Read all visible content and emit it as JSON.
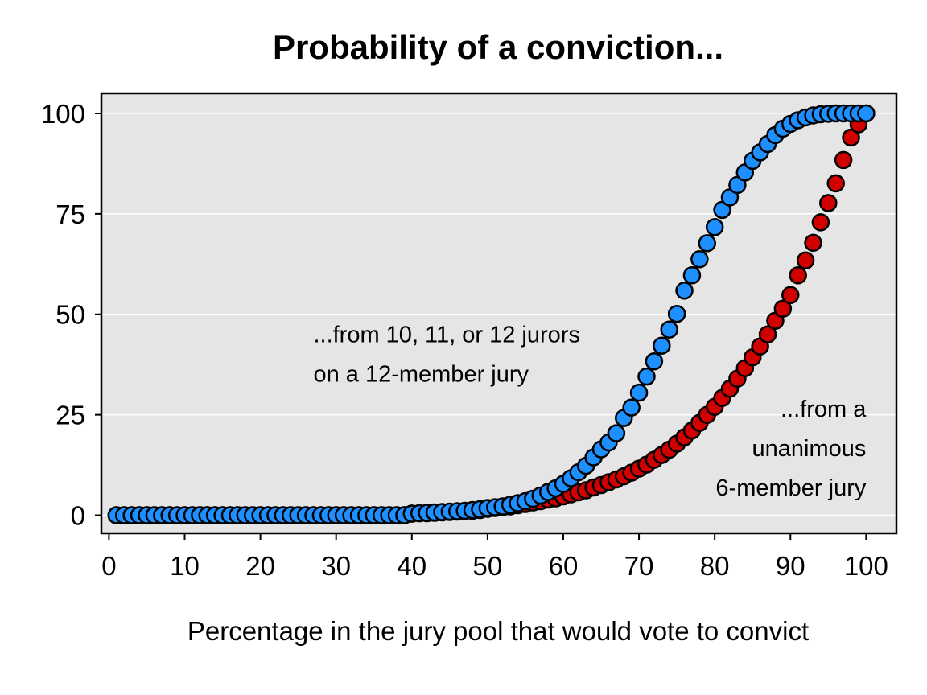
{
  "chart_data": {
    "type": "scatter",
    "title": "Probability of a conviction...",
    "xlabel": "Percentage in the jury pool that would vote to convict",
    "ylabel": "",
    "xlim": [
      -1,
      104
    ],
    "ylim": [
      -4.5,
      105
    ],
    "xticks": [
      0,
      10,
      20,
      30,
      40,
      50,
      60,
      70,
      80,
      90,
      100
    ],
    "yticks": [
      0,
      25,
      50,
      75,
      100
    ],
    "grid": "horizontal",
    "background": "#e5e5e5",
    "annotations": [
      {
        "lines": [
          "...from 10, 11, or 12 jurors",
          "on a 12-member jury"
        ],
        "x": 27,
        "y": 43,
        "align": "start"
      },
      {
        "lines": [
          "...from a",
          "unanimous",
          "6-member jury"
        ],
        "x": 100,
        "y": 24.5,
        "align": "end"
      }
    ],
    "series": [
      {
        "color": "#d10000",
        "x": [
          1,
          2,
          3,
          4,
          5,
          6,
          7,
          8,
          9,
          10,
          11,
          12,
          13,
          14,
          15,
          16,
          17,
          18,
          19,
          20,
          21,
          22,
          23,
          24,
          25,
          26,
          27,
          28,
          29,
          30,
          31,
          32,
          33,
          34,
          35,
          36,
          37,
          38,
          39,
          40,
          41,
          42,
          43,
          44,
          45,
          46,
          47,
          48,
          49,
          50,
          51,
          52,
          53,
          54,
          55,
          56,
          57,
          58,
          59,
          60,
          61,
          62,
          63,
          64,
          65,
          66,
          67,
          68,
          69,
          70,
          71,
          72,
          73,
          74,
          75,
          76,
          77,
          78,
          79,
          80,
          81,
          82,
          83,
          84,
          85,
          86,
          87,
          88,
          89,
          90,
          91,
          92,
          93,
          94,
          95,
          96,
          97,
          98,
          99,
          100
        ],
        "values": [
          0,
          0,
          0,
          0,
          0,
          0,
          0,
          0,
          0,
          0,
          0,
          0,
          0,
          0,
          0,
          0,
          0,
          0,
          0,
          0,
          0,
          0,
          0,
          0,
          0,
          0,
          0,
          0,
          0,
          0,
          0,
          0,
          0,
          0,
          0,
          0,
          0,
          0,
          0,
          0.4,
          0.5,
          0.5,
          0.6,
          0.7,
          0.8,
          0.9,
          1,
          1.1,
          1.3,
          1.6,
          1.8,
          2,
          2.2,
          2.5,
          2.8,
          3.2,
          3.5,
          3.9,
          4.2,
          4.7,
          5.2,
          5.7,
          6.2,
          6.9,
          7.5,
          8.2,
          8.9,
          9.7,
          10.6,
          11.6,
          12.6,
          13.8,
          15,
          16.3,
          17.8,
          19.4,
          21.1,
          23,
          25,
          27,
          29.2,
          31.5,
          34,
          36.6,
          39.3,
          42,
          45,
          48.4,
          51.4,
          54.8,
          59.7,
          63.4,
          67.8,
          72.9,
          77.7,
          82.6,
          88.4,
          94,
          97.3,
          100
        ]
      },
      {
        "color": "#1e8fff",
        "x": [
          1,
          2,
          3,
          4,
          5,
          6,
          7,
          8,
          9,
          10,
          11,
          12,
          13,
          14,
          15,
          16,
          17,
          18,
          19,
          20,
          21,
          22,
          23,
          24,
          25,
          26,
          27,
          28,
          29,
          30,
          31,
          32,
          33,
          34,
          35,
          36,
          37,
          38,
          39,
          40,
          41,
          42,
          43,
          44,
          45,
          46,
          47,
          48,
          49,
          50,
          51,
          52,
          53,
          54,
          55,
          56,
          57,
          58,
          59,
          60,
          61,
          62,
          63,
          64,
          65,
          66,
          67,
          68,
          69,
          70,
          71,
          72,
          73,
          74,
          75,
          76,
          77,
          78,
          79,
          80,
          81,
          82,
          83,
          84,
          85,
          86,
          87,
          88,
          89,
          90,
          91,
          92,
          93,
          94,
          95,
          96,
          97,
          98,
          99,
          100
        ],
        "values": [
          0,
          0,
          0,
          0,
          0,
          0,
          0,
          0,
          0,
          0,
          0,
          0,
          0,
          0,
          0,
          0,
          0,
          0,
          0,
          0,
          0,
          0,
          0,
          0,
          0,
          0,
          0,
          0,
          0,
          0,
          0,
          0,
          0,
          0,
          0,
          0,
          0,
          0,
          0,
          0.4,
          0.5,
          0.6,
          0.7,
          0.8,
          0.9,
          1,
          1.1,
          1.3,
          1.5,
          1.8,
          2,
          2.2,
          2.6,
          3,
          3.5,
          4.1,
          4.9,
          5.8,
          6.7,
          7.8,
          9.2,
          10.7,
          12.3,
          14.4,
          16.4,
          18.1,
          20.4,
          24.2,
          26.8,
          30.5,
          34.5,
          38.3,
          42.2,
          46.2,
          50.1,
          55.9,
          59.7,
          63.7,
          67.7,
          71.7,
          76,
          79.1,
          82.2,
          85.3,
          88.2,
          90.3,
          92.4,
          94.6,
          96.2,
          97.4,
          98.3,
          99,
          99.5,
          99.8,
          99.9,
          100,
          100,
          100,
          100,
          100
        ]
      }
    ]
  }
}
